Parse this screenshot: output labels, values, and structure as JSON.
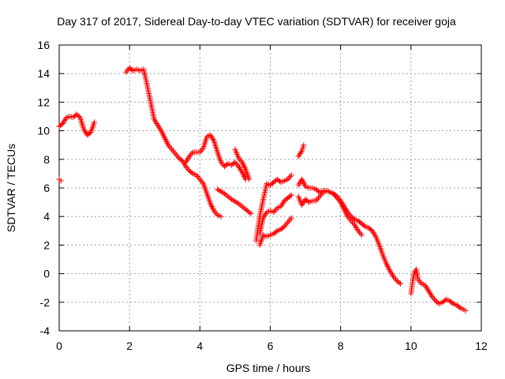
{
  "chart_data": {
    "type": "scatter",
    "title": "Day 317 of 2017, Sidereal Day-to-day VTEC variation (SDTVAR) for receiver goja",
    "xlabel": "GPS time / hours",
    "ylabel": "SDTVAR / TECUs",
    "xlim": [
      0,
      12
    ],
    "ylim": [
      -4,
      16
    ],
    "x_ticks": [
      0,
      2,
      4,
      6,
      8,
      10,
      12
    ],
    "y_ticks": [
      -4,
      -2,
      0,
      2,
      4,
      6,
      8,
      10,
      12,
      14,
      16
    ],
    "grid": true,
    "marker": "+",
    "color": "#ff0000",
    "series": [
      {
        "name": "SDTVAR",
        "segments": [
          [
            [
              0.0,
              6.6
            ],
            [
              0.05,
              6.5
            ]
          ],
          [
            [
              0.0,
              10.3
            ],
            [
              0.1,
              10.5
            ],
            [
              0.2,
              10.9
            ],
            [
              0.3,
              11.0
            ],
            [
              0.4,
              10.95
            ],
            [
              0.5,
              11.15
            ],
            [
              0.6,
              10.9
            ],
            [
              0.7,
              10.1
            ],
            [
              0.8,
              9.7
            ],
            [
              0.9,
              9.9
            ],
            [
              1.0,
              10.6
            ]
          ],
          [
            [
              1.9,
              14.1
            ],
            [
              2.0,
              14.4
            ],
            [
              2.1,
              14.2
            ],
            [
              2.2,
              14.3
            ],
            [
              2.3,
              14.2
            ],
            [
              2.4,
              14.3
            ],
            [
              2.5,
              13.2
            ],
            [
              2.6,
              12.0
            ],
            [
              2.7,
              10.8
            ],
            [
              2.8,
              10.4
            ],
            [
              2.9,
              10.0
            ],
            [
              3.0,
              9.5
            ],
            [
              3.1,
              9.0
            ],
            [
              3.2,
              8.7
            ],
            [
              3.3,
              8.4
            ],
            [
              3.4,
              8.1
            ],
            [
              3.5,
              7.9
            ],
            [
              3.6,
              7.5
            ],
            [
              3.7,
              7.2
            ],
            [
              3.8,
              7.0
            ],
            [
              3.9,
              6.9
            ],
            [
              4.0,
              6.6
            ],
            [
              4.1,
              6.3
            ],
            [
              4.2,
              5.6
            ],
            [
              4.3,
              4.9
            ],
            [
              4.4,
              4.4
            ],
            [
              4.5,
              4.1
            ],
            [
              4.6,
              4.0
            ]
          ],
          [
            [
              3.6,
              7.8
            ],
            [
              3.7,
              8.2
            ],
            [
              3.8,
              8.5
            ],
            [
              3.9,
              8.5
            ],
            [
              4.0,
              8.5
            ],
            [
              4.1,
              8.8
            ],
            [
              4.2,
              9.6
            ],
            [
              4.3,
              9.7
            ],
            [
              4.4,
              9.3
            ],
            [
              4.5,
              8.5
            ],
            [
              4.6,
              7.8
            ],
            [
              4.7,
              7.5
            ],
            [
              4.8,
              7.7
            ],
            [
              4.9,
              7.6
            ],
            [
              5.0,
              7.8
            ],
            [
              5.1,
              7.5
            ],
            [
              5.2,
              7.1
            ],
            [
              5.3,
              6.6
            ]
          ],
          [
            [
              5.0,
              8.7
            ],
            [
              5.1,
              8.1
            ],
            [
              5.2,
              7.8
            ],
            [
              5.3,
              7.3
            ],
            [
              5.4,
              6.6
            ]
          ],
          [
            [
              4.5,
              5.9
            ],
            [
              4.7,
              5.6
            ],
            [
              4.9,
              5.2
            ],
            [
              5.1,
              4.9
            ],
            [
              5.3,
              4.5
            ],
            [
              5.45,
              4.2
            ]
          ],
          [
            [
              5.6,
              2.3
            ],
            [
              5.7,
              4.0
            ],
            [
              5.8,
              5.2
            ],
            [
              5.9,
              6.3
            ],
            [
              6.0,
              6.2
            ],
            [
              6.1,
              6.4
            ],
            [
              6.2,
              6.6
            ],
            [
              6.3,
              6.4
            ],
            [
              6.4,
              6.5
            ],
            [
              6.5,
              6.6
            ],
            [
              6.6,
              6.9
            ]
          ],
          [
            [
              5.7,
              2.8
            ],
            [
              5.8,
              3.9
            ],
            [
              5.9,
              4.3
            ],
            [
              6.0,
              4.4
            ],
            [
              6.1,
              4.3
            ],
            [
              6.2,
              4.6
            ],
            [
              6.3,
              4.7
            ],
            [
              6.4,
              5.1
            ],
            [
              6.5,
              5.3
            ],
            [
              6.6,
              5.5
            ]
          ],
          [
            [
              5.7,
              2.0
            ],
            [
              5.8,
              2.7
            ],
            [
              5.9,
              2.6
            ],
            [
              6.0,
              2.7
            ],
            [
              6.1,
              2.8
            ],
            [
              6.2,
              3.0
            ],
            [
              6.3,
              3.1
            ],
            [
              6.4,
              3.3
            ],
            [
              6.5,
              3.6
            ],
            [
              6.6,
              3.9
            ]
          ],
          [
            [
              6.8,
              6.2
            ],
            [
              6.9,
              6.6
            ],
            [
              7.0,
              6.1
            ],
            [
              7.1,
              6.0
            ],
            [
              7.2,
              6.0
            ],
            [
              7.3,
              5.9
            ],
            [
              7.4,
              5.7
            ],
            [
              7.5,
              5.8
            ],
            [
              7.6,
              5.8
            ],
            [
              7.7,
              5.7
            ],
            [
              7.8,
              5.6
            ],
            [
              7.9,
              5.4
            ],
            [
              8.0,
              5.1
            ],
            [
              8.1,
              4.7
            ],
            [
              8.2,
              4.3
            ],
            [
              8.3,
              4.0
            ],
            [
              8.4,
              3.8
            ],
            [
              8.5,
              3.7
            ],
            [
              8.6,
              3.5
            ],
            [
              8.7,
              3.3
            ],
            [
              8.8,
              3.2
            ],
            [
              8.9,
              3.0
            ],
            [
              9.0,
              2.6
            ],
            [
              9.1,
              2.0
            ],
            [
              9.2,
              1.3
            ],
            [
              9.3,
              0.7
            ],
            [
              9.4,
              0.2
            ],
            [
              9.5,
              -0.2
            ],
            [
              9.6,
              -0.5
            ],
            [
              9.7,
              -0.7
            ]
          ],
          [
            [
              6.8,
              5.4
            ],
            [
              6.9,
              4.8
            ],
            [
              7.0,
              5.2
            ],
            [
              7.1,
              5.0
            ],
            [
              7.2,
              5.1
            ],
            [
              7.3,
              5.1
            ],
            [
              7.4,
              5.4
            ],
            [
              7.5,
              5.7
            ],
            [
              7.6,
              5.8
            ],
            [
              7.7,
              5.7
            ],
            [
              7.8,
              5.6
            ],
            [
              7.9,
              5.3
            ],
            [
              8.0,
              5.0
            ],
            [
              8.1,
              4.5
            ],
            [
              8.2,
              4.0
            ],
            [
              8.3,
              3.7
            ],
            [
              8.4,
              3.4
            ],
            [
              8.5,
              3.0
            ],
            [
              8.6,
              2.7
            ]
          ],
          [
            [
              6.8,
              8.2
            ],
            [
              6.9,
              8.6
            ],
            [
              6.95,
              9.0
            ]
          ],
          [
            [
              10.0,
              -1.4
            ],
            [
              10.05,
              -0.5
            ],
            [
              10.1,
              0.1
            ],
            [
              10.15,
              0.3
            ],
            [
              10.2,
              -0.4
            ],
            [
              10.3,
              -0.7
            ],
            [
              10.4,
              -0.8
            ],
            [
              10.5,
              -1.2
            ],
            [
              10.6,
              -1.6
            ],
            [
              10.7,
              -1.9
            ],
            [
              10.8,
              -2.1
            ],
            [
              10.9,
              -2.0
            ],
            [
              11.0,
              -1.8
            ],
            [
              11.1,
              -1.9
            ],
            [
              11.2,
              -2.1
            ],
            [
              11.3,
              -2.2
            ],
            [
              11.4,
              -2.4
            ],
            [
              11.5,
              -2.5
            ],
            [
              11.55,
              -2.6
            ]
          ]
        ]
      }
    ]
  }
}
